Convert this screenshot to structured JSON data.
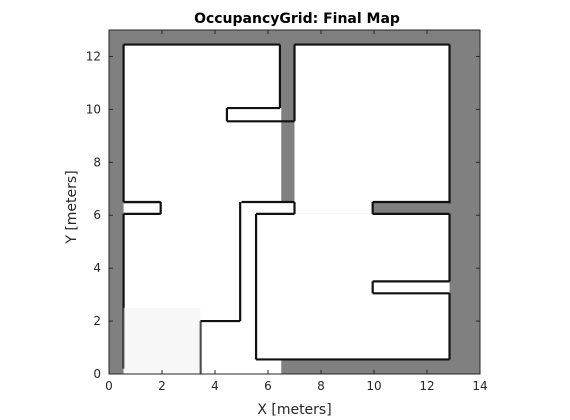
{
  "chart_data": {
    "type": "heatmap",
    "title": "OccupancyGrid: Final Map",
    "xlabel": "X [meters]",
    "ylabel": "Y [meters]",
    "xlim": [
      0,
      14
    ],
    "ylim": [
      0,
      13
    ],
    "xticks": [
      "0",
      "2",
      "4",
      "6",
      "8",
      "10",
      "12",
      "14"
    ],
    "yticks": [
      "0",
      "2",
      "4",
      "6",
      "8",
      "10",
      "12"
    ],
    "background_color": "#808080",
    "free_color": "#ffffff",
    "wall_edge_color": "#111111",
    "free_regions": [
      [
        0.55,
        6.5,
        6.45,
        12.45
      ],
      [
        0.55,
        6.05,
        1.95,
        6.45
      ],
      [
        1.95,
        0,
        6.5,
        9.55
      ],
      [
        4.45,
        9.55,
        6.5,
        10.05
      ],
      [
        0.55,
        0,
        5.0,
        1.95
      ],
      [
        0.55,
        1.95,
        3.45,
        2.0
      ],
      [
        0.55,
        1.95,
        2.0,
        6.05
      ],
      [
        2.0,
        1.95,
        3.45,
        6.05
      ],
      [
        3.45,
        2.0,
        4.95,
        6.05
      ],
      [
        4.95,
        0,
        5.0,
        6.05
      ],
      [
        4.95,
        6.05,
        5.0,
        6.5
      ],
      [
        5.0,
        6.05,
        5.4,
        6.5
      ],
      [
        7.0,
        6.5,
        12.85,
        12.45
      ],
      [
        7.0,
        6.05,
        9.95,
        6.5
      ],
      [
        5.5,
        0.55,
        12.85,
        6.05
      ],
      [
        9.95,
        3.5,
        12.85,
        6.05
      ],
      [
        9.95,
        3.05,
        12.85,
        3.5
      ],
      [
        5.5,
        6.05,
        7.0,
        6.5
      ]
    ],
    "occupied_regions": [
      [
        0,
        0,
        0.55,
        12.45
      ],
      [
        0.45,
        12.45,
        13.0,
        12.5
      ],
      [
        6.45,
        9.55,
        7.0,
        12.45
      ],
      [
        4.45,
        9.55,
        6.45,
        10.05
      ],
      [
        0.45,
        6.05,
        2.0,
        6.5
      ],
      [
        4.95,
        0,
        5.0,
        6.05
      ],
      [
        5.0,
        6.05,
        5.5,
        6.5
      ],
      [
        5.4,
        0.5,
        5.55,
        6.05
      ],
      [
        5.5,
        6.05,
        7.0,
        6.45
      ],
      [
        9.95,
        6.05,
        12.85,
        6.45
      ],
      [
        12.85,
        0.5,
        13.0,
        12.5
      ],
      [
        9.95,
        3.05,
        12.85,
        3.5
      ],
      [
        5.5,
        0.5,
        12.9,
        0.55
      ],
      [
        3.45,
        0,
        4.95,
        2.0
      ],
      [
        4.95,
        0,
        5.5,
        1.95
      ]
    ]
  }
}
